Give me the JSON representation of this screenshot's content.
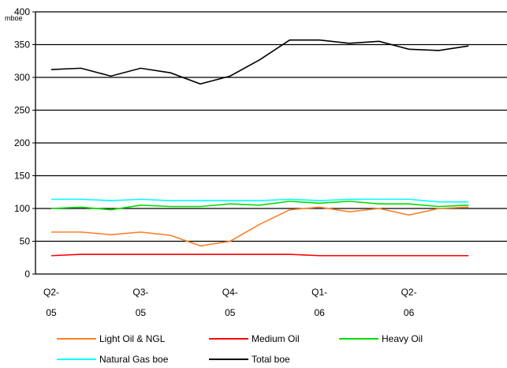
{
  "chart_data": {
    "type": "line",
    "y_unit": "mboe",
    "categories": [
      "Q2-\n05",
      null,
      null,
      "Q3-\n05",
      null,
      null,
      "Q4-\n05",
      null,
      null,
      "Q1-\n06",
      null,
      null,
      "Q2-\n06",
      null,
      null
    ],
    "ylim": [
      0,
      400
    ],
    "yticks": [
      0,
      50,
      100,
      150,
      200,
      250,
      300,
      350,
      400
    ],
    "grid": true,
    "series": [
      {
        "name": "Light Oil & NGL",
        "color": "#ff7f27",
        "values": [
          64,
          64,
          60,
          64,
          59,
          43,
          50,
          76,
          98,
          102,
          95,
          100,
          90,
          100,
          102
        ]
      },
      {
        "name": "Medium Oil",
        "color": "#ff0000",
        "values": [
          28,
          30,
          30,
          30,
          30,
          30,
          30,
          30,
          30,
          28,
          28,
          28,
          28,
          28,
          28
        ]
      },
      {
        "name": "Heavy Oil",
        "color": "#00dd00",
        "values": [
          100,
          102,
          98,
          105,
          103,
          103,
          107,
          105,
          111,
          108,
          111,
          107,
          107,
          103,
          105
        ]
      },
      {
        "name": "Natural Gas boe",
        "color": "#00ffff",
        "values": [
          114,
          114,
          112,
          114,
          112,
          112,
          112,
          112,
          114,
          112,
          114,
          114,
          114,
          110,
          110
        ]
      },
      {
        "name": "Total boe",
        "color": "#000000",
        "values": [
          312,
          314,
          302,
          314,
          307,
          290,
          302,
          327,
          357,
          357,
          352,
          355,
          343,
          341,
          348
        ]
      }
    ]
  }
}
